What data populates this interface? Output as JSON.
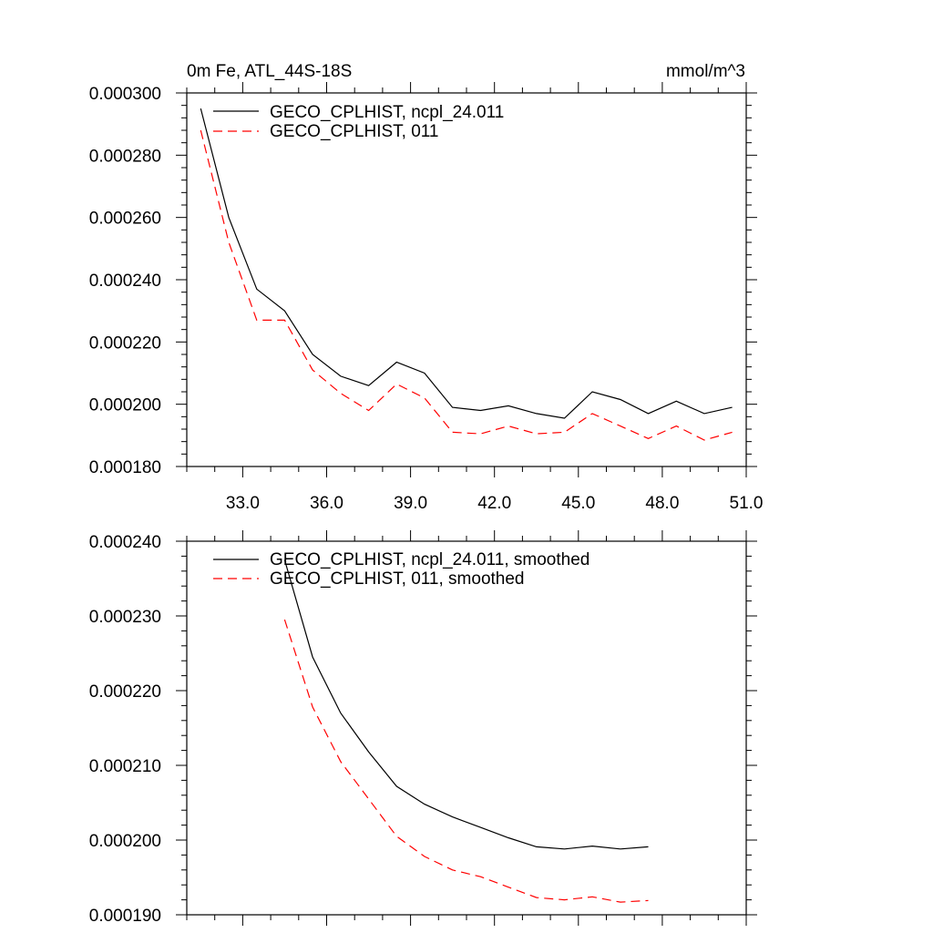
{
  "chart_data": [
    {
      "type": "line",
      "title": "0m Fe, ATL_44S-18S",
      "units": "mmol/m^3",
      "xlabel": "",
      "ylabel": "",
      "xlim": [
        31,
        51
      ],
      "ylim": [
        0.00018,
        0.0003
      ],
      "x_ticks": [
        "33.0",
        "36.0",
        "39.0",
        "42.0",
        "45.0",
        "48.0",
        "51.0"
      ],
      "y_ticks": [
        "0.000300",
        "0.000280",
        "0.000260",
        "0.000240",
        "0.000220",
        "0.000200",
        "0.000180"
      ],
      "legend_position": "top-left",
      "x": [
        31.5,
        32.5,
        33.5,
        34.5,
        35.5,
        36.5,
        37.5,
        38.5,
        39.5,
        40.5,
        41.5,
        42.5,
        43.5,
        44.5,
        45.5,
        46.5,
        47.5,
        48.5,
        49.5,
        50.5
      ],
      "series": [
        {
          "name": "GECO_CPLHIST, ncpl_24.011",
          "color": "#000000",
          "dash": "solid",
          "values": [
            0.000295,
            0.00026,
            0.000237,
            0.00023,
            0.000216,
            0.000209,
            0.000206,
            0.0002135,
            0.00021,
            0.000199,
            0.000198,
            0.0001995,
            0.000197,
            0.0001955,
            0.000204,
            0.0002015,
            0.000197,
            0.000201,
            0.000197,
            0.000199
          ]
        },
        {
          "name": "GECO_CPLHIST, 011",
          "color": "#ff0000",
          "dash": "dashed",
          "values": [
            0.000288,
            0.000252,
            0.000227,
            0.000227,
            0.000211,
            0.0002035,
            0.000198,
            0.0002065,
            0.000202,
            0.000191,
            0.0001905,
            0.000193,
            0.0001905,
            0.000191,
            0.000197,
            0.000193,
            0.000189,
            0.000193,
            0.0001885,
            0.000191
          ]
        }
      ]
    },
    {
      "type": "line",
      "title": "",
      "xlabel": "",
      "ylabel": "",
      "xlim": [
        31,
        51
      ],
      "ylim": [
        0.00019,
        0.00024
      ],
      "y_ticks": [
        "0.000240",
        "0.000230",
        "0.000220",
        "0.000210",
        "0.000200",
        "0.000190"
      ],
      "legend_position": "top-left",
      "series": [
        {
          "name": "GECO_CPLHIST, ncpl_24.011, smoothed",
          "color": "#000000",
          "dash": "solid",
          "x": [
            34.5,
            35.5,
            36.5,
            37.5,
            38.5,
            39.5,
            40.5,
            41.5,
            42.5,
            43.5,
            44.5,
            45.5,
            46.5,
            47.5
          ],
          "values": [
            0.0002375,
            0.0002245,
            0.000217,
            0.0002118,
            0.0002072,
            0.0002048,
            0.0002031,
            0.0002017,
            0.0002003,
            0.0001991,
            0.0001988,
            0.0001992,
            0.0001988,
            0.0001991
          ]
        },
        {
          "name": "GECO_CPLHIST, 011, smoothed",
          "color": "#ff0000",
          "dash": "dashed",
          "x": [
            34.5,
            35.5,
            36.5,
            37.5,
            38.5,
            39.5,
            40.5,
            41.5,
            42.5,
            43.5,
            44.5,
            45.5,
            46.5,
            47.5
          ],
          "values": [
            0.0002295,
            0.0002178,
            0.0002105,
            0.0002055,
            0.0002005,
            0.0001978,
            0.000196,
            0.0001951,
            0.0001937,
            0.0001923,
            0.000192,
            0.0001924,
            0.0001917,
            0.0001919
          ]
        }
      ]
    }
  ]
}
